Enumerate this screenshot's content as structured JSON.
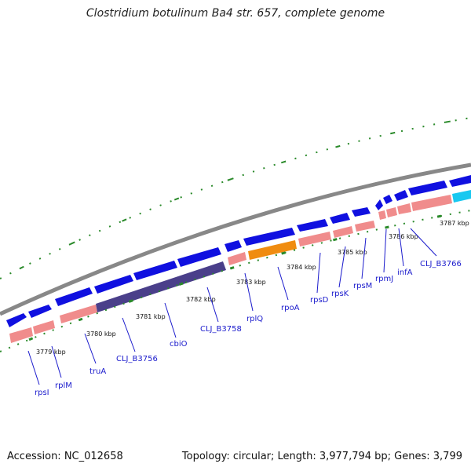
{
  "title": "Clostridium botulinum Ba4 str. 657, complete genome",
  "footer": {
    "accession": "Accession: NC_012658",
    "summary": "Topology: circular; Length: 3,977,794 bp; Genes: 3,799"
  },
  "kbp_labels": [
    "3779 kbp",
    "3780 kbp",
    "3781 kbp",
    "3782 kbp",
    "3783 kbp",
    "3784 kbp",
    "3785 kbp",
    "3786 kbp",
    "3787 kbp"
  ],
  "gene_labels": [
    "rpsI",
    "rplM",
    "truA",
    "CLJ_B3756",
    "cbiO",
    "CLJ_B3758",
    "rplQ",
    "rpoA",
    "rpsD",
    "rpsK",
    "rpsM",
    "rpmJ",
    "infA",
    "CLJ_B3766"
  ],
  "colors": {
    "backbone": "#888888",
    "gene_forward": "#1010e0",
    "gene_pink": "#f08c8c",
    "gene_purple": "#4a3f8a",
    "gene_orange": "#f08c10",
    "gene_cyan": "#18c8f0",
    "ticks": "#2a8a2a",
    "label_blue": "#1a1acc"
  }
}
